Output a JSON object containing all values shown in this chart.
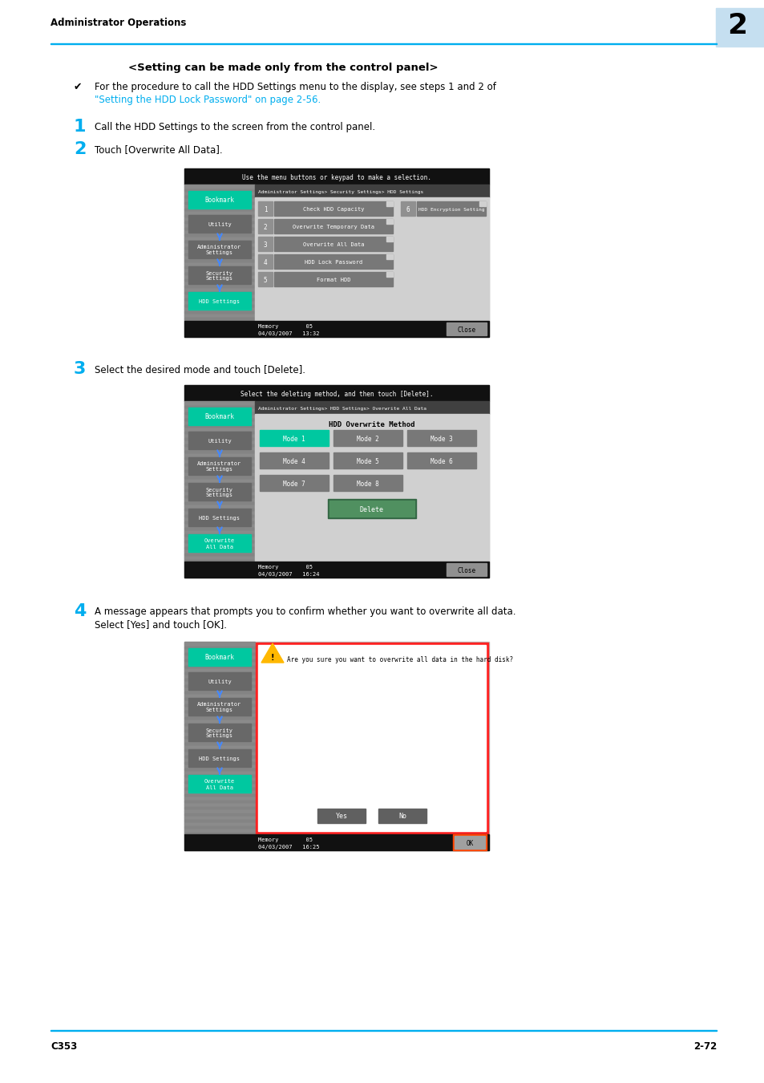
{
  "page_title": "Administrator Operations",
  "chapter_num": "2",
  "footer_left": "C353",
  "footer_right": "2-72",
  "header_line_color": "#00AEEF",
  "section_title": "<Setting can be made only from the control panel>",
  "bullet_intro": "For the procedure to call the HDD Settings menu to the display, see steps 1 and 2 of ",
  "bullet_link": "\"Setting the HDD\nLock Password\" on page 2-56",
  "steps": [
    {
      "num": "1",
      "text": "Call the HDD Settings to the screen from the control panel."
    },
    {
      "num": "2",
      "text": "Touch [Overwrite All Data]."
    },
    {
      "num": "3",
      "text": "Select the desired mode and touch [Delete]."
    },
    {
      "num": "4",
      "text": "A message appears that prompts you to confirm whether you want to overwrite all data.\nSelect [Yes] and touch [OK]."
    }
  ],
  "cyan_color": "#00AEEF",
  "bg_color": "#FFFFFF",
  "screen1": {
    "top_msg": "Use the menu buttons or keypad to make a selection.",
    "breadcrumb": "Administrator Settings> Security Settings> HDD Settings",
    "menu_items": [
      "Check HDD Capacity",
      "Overwrite Temporary Data",
      "Overwrite All Data",
      "HDD Lock Password",
      "Format HDD"
    ],
    "menu_nums": [
      "1",
      "2",
      "3",
      "4",
      "5"
    ],
    "right_item_num": "6",
    "right_item": "HDD Encryption Setting",
    "datetime": "04/03/2007   13:32",
    "memory": "Memory        05"
  },
  "screen2": {
    "top_msg": "Select the deleting method, and then touch [Delete].",
    "breadcrumb": "Administrator Settings> HDD Settings> Overwrite All Data",
    "title": "HDD Overwrite Method",
    "modes": [
      "Mode 1",
      "Mode 2",
      "Mode 3",
      "Mode 4",
      "Mode 5",
      "Mode 6",
      "Mode 7",
      "Mode 8"
    ],
    "mode1_green": true,
    "datetime": "04/03/2007   16:24",
    "memory": "Memory        05"
  },
  "screen3": {
    "dialog_msg": "Are you sure you want to overwrite all data in the hard disk?",
    "datetime": "04/03/2007   16:25",
    "memory": "Memory        05"
  },
  "sidebar_buttons_s1": [
    "Bookmark",
    "Utility",
    "Administrator\nSettings",
    "Security\nSettings",
    "HDD Settings"
  ],
  "sidebar_active_s1": 4,
  "sidebar_buttons_s2": [
    "Bookmark",
    "Utility",
    "Administrator\nSettings",
    "Security\nSettings",
    "HDD Settings",
    "Overwrite\nAll Data"
  ],
  "sidebar_active_s2": 5,
  "sidebar_buttons_s3": [
    "Bookmark",
    "Utility",
    "Administrator\nSettings",
    "Security\nSettings",
    "HDD Settings",
    "Overwrite\nAll Data"
  ],
  "sidebar_active_s3": 5
}
